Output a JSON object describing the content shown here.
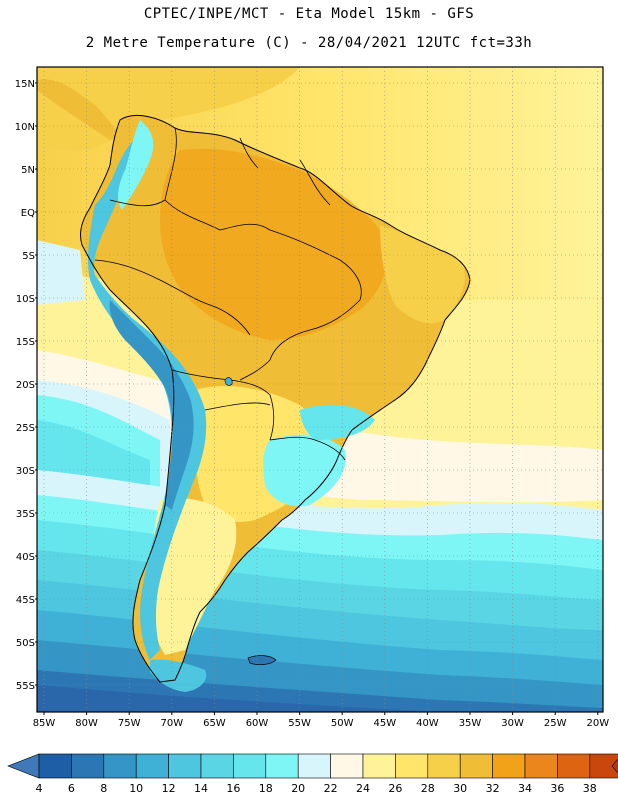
{
  "title": {
    "line1": "CPTEC/INPE/MCT -  Eta Model 15km - GFS",
    "line2": "2 Metre Temperature (C) - 28/04/2021 12UTC fct=33h"
  },
  "map": {
    "variable": "2 Metre Temperature",
    "units": "C",
    "lat_labels": [
      "15N",
      "10N",
      "5N",
      "EQ",
      "5S",
      "10S",
      "15S",
      "20S",
      "25S",
      "30S",
      "35S",
      "40S",
      "45S",
      "50S",
      "55S"
    ],
    "lon_labels": [
      "85W",
      "80W",
      "75W",
      "70W",
      "65W",
      "60W",
      "55W",
      "50W",
      "45W",
      "40W",
      "35W",
      "30W",
      "25W",
      "20W"
    ]
  },
  "legend": {
    "levels": [
      "4",
      "6",
      "8",
      "10",
      "12",
      "14",
      "16",
      "18",
      "20",
      "22",
      "24",
      "26",
      "28",
      "30",
      "32",
      "34",
      "36",
      "38"
    ],
    "colors": [
      "#1d5ea6",
      "#2d76b4",
      "#3596c6",
      "#3fb1d6",
      "#4ec6df",
      "#5ad5e4",
      "#64e6ec",
      "#7ff6f6",
      "#d7f5fb",
      "#fff8e6",
      "#fff39a",
      "#ffe56a",
      "#f7d04a",
      "#f0bd36",
      "#f1a216",
      "#ea861c",
      "#dd6512",
      "#c9460c",
      "#b03a10"
    ],
    "under_color": "#3f79b9",
    "over_color": "#b03a10"
  }
}
